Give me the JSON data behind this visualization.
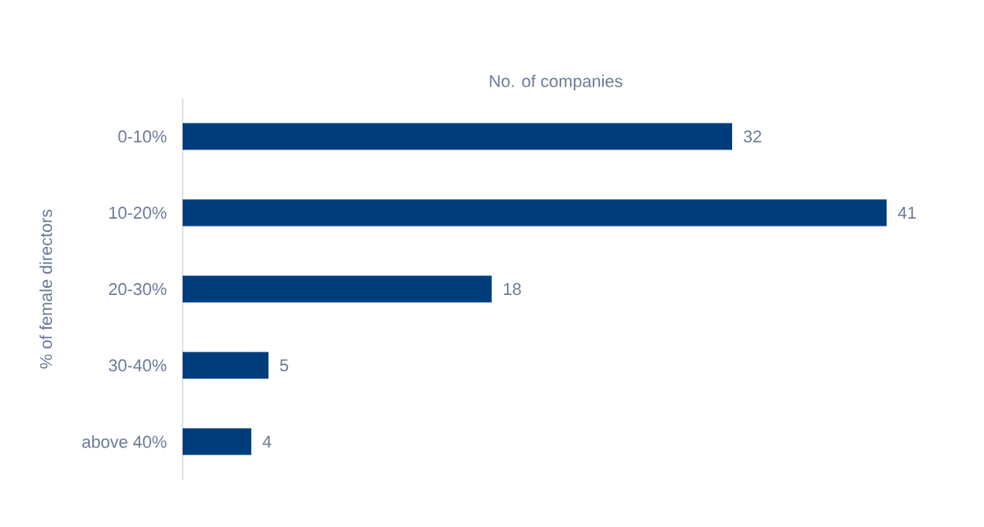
{
  "chart_data": {
    "type": "bar",
    "orientation": "horizontal",
    "xlabel": "No. of companies",
    "ylabel": "% of female directors",
    "categories": [
      "0-10%",
      "10-20%",
      "20-30%",
      "30-40%",
      "above 40%"
    ],
    "values": [
      32,
      41,
      18,
      5,
      4
    ],
    "color": "#003d7c",
    "data_labels": true,
    "grid": false
  }
}
